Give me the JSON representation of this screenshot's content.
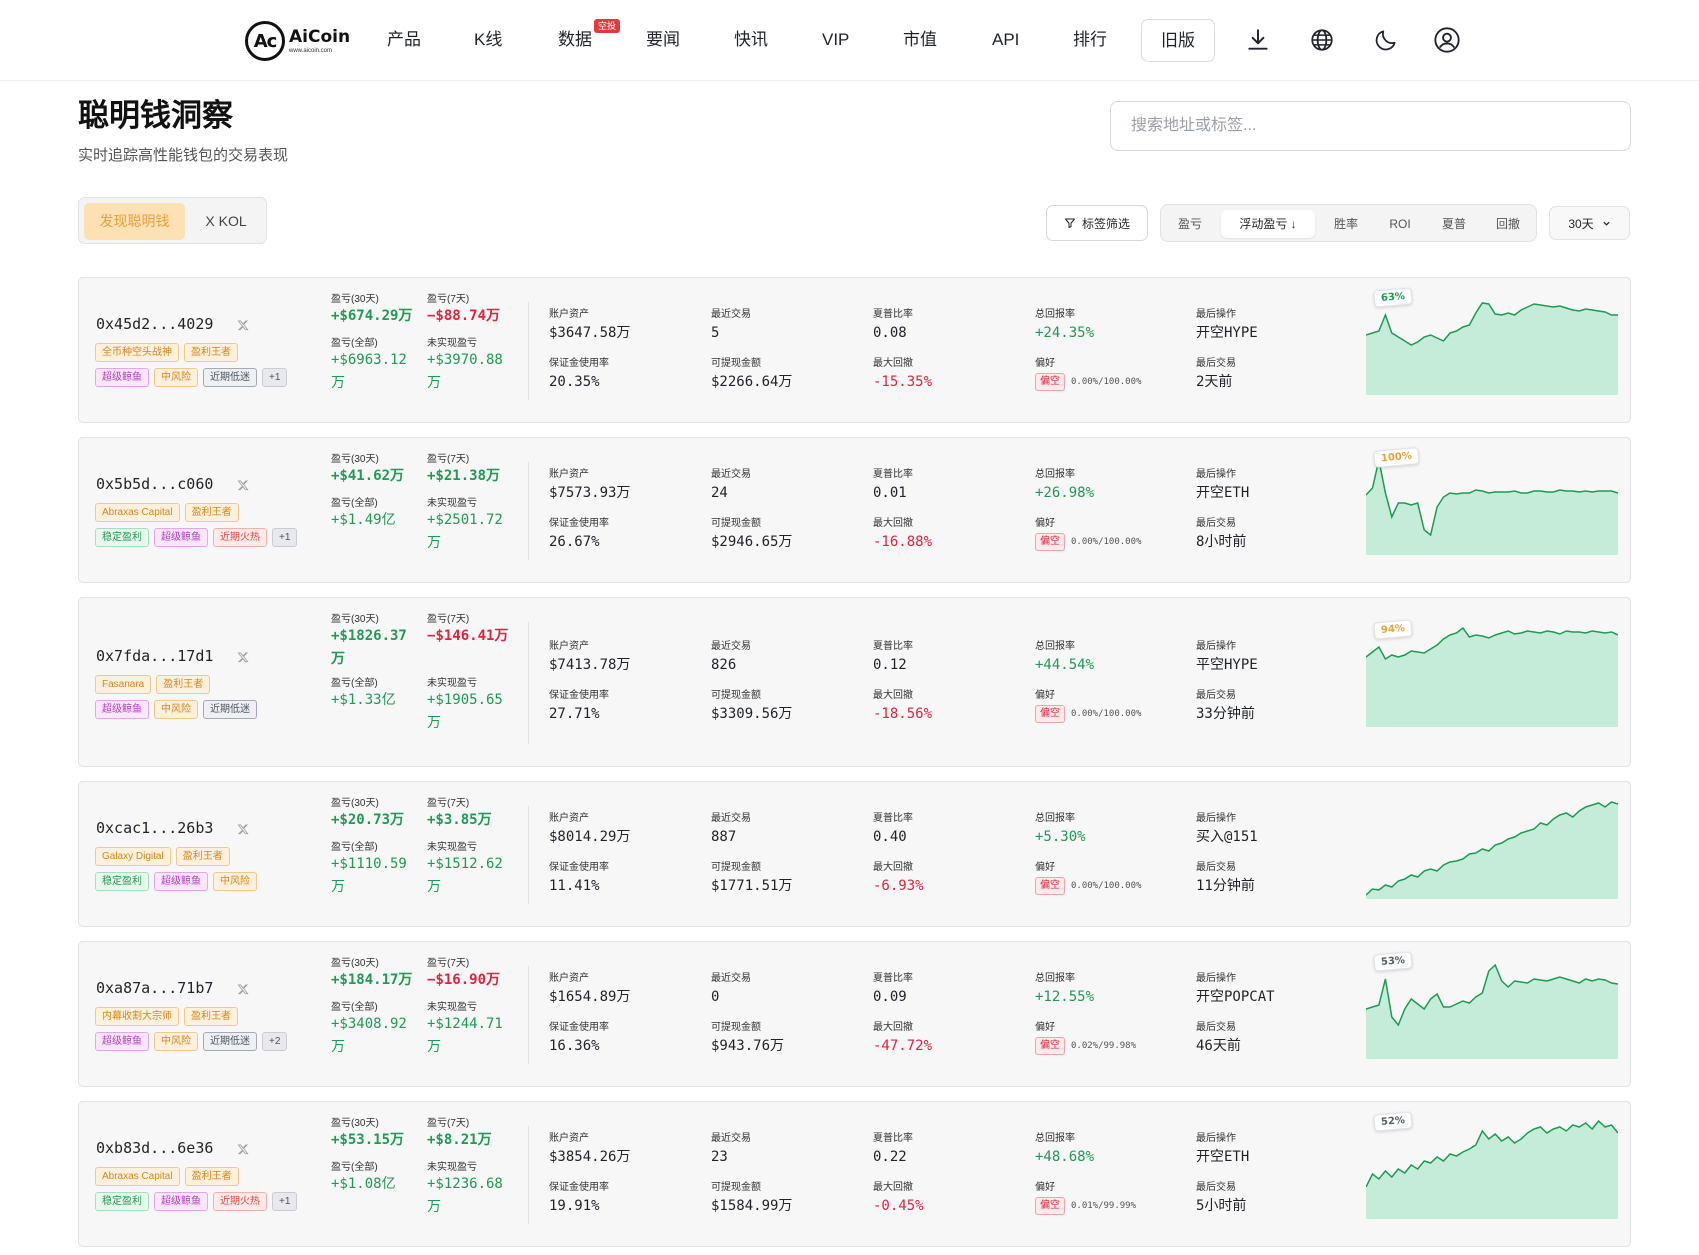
{
  "nav": {
    "logo_name": "AiCoin",
    "logo_sub": "www.aicoin.com",
    "logo_mark": "Ac",
    "items": [
      "产品",
      "K线",
      "数据",
      "要闻",
      "快讯",
      "VIP",
      "市值",
      "API",
      "排行"
    ],
    "data_badge": "空投",
    "old_version": "旧版"
  },
  "header": {
    "title": "聪明钱洞察",
    "subtitle": "实时追踪高性能钱包的交易表现",
    "search_placeholder": "搜索地址或标签..."
  },
  "toggle": {
    "active": "发现聪明钱",
    "other": "X KOL"
  },
  "filters": {
    "tag_filter": "标签筛选",
    "sorts": [
      "盈亏",
      "浮动盈亏 ↓",
      "胜率",
      "ROI",
      "夏普",
      "回撤"
    ],
    "active_sort": 1,
    "period": "30天"
  },
  "labels": {
    "pnl30": "盈亏(30天)",
    "pnl7": "盈亏(7天)",
    "pnl_all": "盈亏(全部)",
    "unrealized": "未实现盈亏",
    "account_assets": "账户资产",
    "margin_usage": "保证金使用率",
    "recent_trades": "最近交易",
    "withdrawable": "可提现金额",
    "sharpe": "夏普比率",
    "max_drawdown": "最大回撤",
    "total_return": "总回报率",
    "preference": "偏好",
    "last_action": "最后操作",
    "last_trade": "最后交易"
  },
  "colors": {
    "green": "#1f9a52",
    "red": "#e0233c",
    "area_green": "#c5ecd8",
    "area_red": "#f6cfd3",
    "badge_orange": "#e8a13d"
  },
  "wallets": [
    {
      "address": "0x45d2...4029",
      "tags": [
        [
          "全币种空头战神",
          "orange"
        ],
        [
          "盈利王者",
          "orange"
        ],
        [
          "超级鲸鱼",
          "purple"
        ],
        [
          "中风险",
          "orange"
        ],
        [
          "近期低迷",
          "gray"
        ],
        [
          "+1",
          "more"
        ]
      ],
      "pnl30": "+$674.29万",
      "pnl7": "−$88.74万",
      "pnl_all": "+$6963.12万",
      "unrealized": "+$3970.88万",
      "account_assets": "$3647.58万",
      "margin_usage": "20.35%",
      "recent_trades": "5",
      "withdrawable": "$2266.64万",
      "sharpe": "0.08",
      "max_drawdown": "-15.35%",
      "total_return": "+24.35%",
      "pref_side": "偏空",
      "pref_ratio": "0.00%/100.00%",
      "last_action": "开空HYPE",
      "last_trade": "2天前",
      "win_rate": "63%",
      "win_color": "#1f9a52",
      "spark": [
        40,
        38,
        36,
        20,
        38,
        42,
        46,
        50,
        47,
        42,
        40,
        43,
        46,
        38,
        36,
        32,
        30,
        18,
        8,
        9,
        19,
        20,
        18,
        20,
        15,
        12,
        9,
        10,
        11,
        12,
        11,
        13,
        15,
        16,
        14,
        15,
        16,
        17,
        20,
        20
      ]
    },
    {
      "address": "0x5b5d...c060",
      "tags": [
        [
          "Abraxas Capital",
          "orange"
        ],
        [
          "盈利王者",
          "orange"
        ],
        [
          "稳定盈利",
          "green"
        ],
        [
          "超级鲸鱼",
          "purple"
        ],
        [
          "近期火热",
          "red"
        ],
        [
          "+1",
          "more"
        ]
      ],
      "pnl30": "+$41.62万",
      "pnl7": "+$21.38万",
      "pnl_all": "+$1.49亿",
      "unrealized": "+$2501.72万",
      "account_assets": "$7573.93万",
      "margin_usage": "26.67%",
      "recent_trades": "24",
      "withdrawable": "$2946.65万",
      "sharpe": "0.01",
      "max_drawdown": "-16.88%",
      "total_return": "+26.98%",
      "pref_side": "偏空",
      "pref_ratio": "0.00%/100.00%",
      "last_action": "开空ETH",
      "last_trade": "8小时前",
      "win_rate": "100%",
      "win_color": "#e8a13d",
      "spark": [
        40,
        33,
        5,
        38,
        62,
        48,
        48,
        50,
        48,
        75,
        80,
        52,
        42,
        38,
        39,
        38,
        38,
        35,
        36,
        38,
        37,
        37,
        37,
        36,
        38,
        38,
        36,
        36,
        37,
        37,
        35,
        36,
        36,
        37,
        36,
        37,
        36,
        36,
        36,
        38
      ]
    },
    {
      "address": "0x7fda...17d1",
      "tags": [
        [
          "Fasanara",
          "orange"
        ],
        [
          "盈利王者",
          "orange"
        ],
        [
          "超级鲸鱼",
          "purple"
        ],
        [
          "中风险",
          "orange"
        ],
        [
          "近期低迷",
          "gray"
        ]
      ],
      "pnl30": "+$1826.37万",
      "pnl7": "−$146.41万",
      "pnl_all": "+$1.33亿",
      "unrealized": "+$1905.65万",
      "account_assets": "$7413.78万",
      "margin_usage": "27.71%",
      "recent_trades": "826",
      "withdrawable": "$3309.56万",
      "sharpe": "0.12",
      "max_drawdown": "-18.56%",
      "total_return": "+44.54%",
      "pref_side": "偏空",
      "pref_ratio": "0.00%/100.00%",
      "last_action": "平空HYPE",
      "last_trade": "33分钟前",
      "win_rate": "94%",
      "win_color": "#e8a13d",
      "spark": [
        30,
        25,
        20,
        32,
        28,
        30,
        28,
        24,
        25,
        26,
        22,
        18,
        12,
        8,
        6,
        1,
        10,
        8,
        9,
        11,
        8,
        6,
        4,
        7,
        6,
        4,
        5,
        6,
        4,
        5,
        7,
        4,
        5,
        5,
        6,
        4,
        5,
        6,
        5,
        8
      ]
    },
    {
      "address": "0xcac1...26b3",
      "tags": [
        [
          "Galaxy Digital",
          "orange"
        ],
        [
          "盈利王者",
          "orange"
        ],
        [
          "稳定盈利",
          "green"
        ],
        [
          "超级鲸鱼",
          "purple"
        ],
        [
          "中风险",
          "orange"
        ]
      ],
      "pnl30": "+$20.73万",
      "pnl7": "+$3.85万",
      "pnl_all": "+$1110.59万",
      "unrealized": "+$1512.62万",
      "account_assets": "$8014.29万",
      "margin_usage": "11.41%",
      "recent_trades": "887",
      "withdrawable": "$1771.51万",
      "sharpe": "0.40",
      "max_drawdown": "-6.93%",
      "total_return": "+5.30%",
      "pref_side": "偏空",
      "pref_ratio": "0.00%/100.00%",
      "last_action": "买入@151",
      "last_trade": "11分钟前",
      "win_rate": "",
      "win_color": "#1f9a52",
      "spark": [
        96,
        90,
        91,
        86,
        88,
        82,
        80,
        76,
        78,
        72,
        70,
        72,
        66,
        63,
        62,
        60,
        55,
        54,
        50,
        52,
        46,
        44,
        40,
        38,
        34,
        32,
        30,
        24,
        26,
        20,
        16,
        14,
        18,
        12,
        8,
        6,
        4,
        8,
        3,
        5
      ]
    },
    {
      "address": "0xa87a...71b7",
      "tags": [
        [
          "内幕收割大宗师",
          "orange"
        ],
        [
          "盈利王者",
          "orange"
        ],
        [
          "超级鲸鱼",
          "purple"
        ],
        [
          "中风险",
          "orange"
        ],
        [
          "近期低迷",
          "gray"
        ],
        [
          "+2",
          "more"
        ]
      ],
      "pnl30": "+$184.17万",
      "pnl7": "−$16.90万",
      "pnl_all": "+$3408.92万",
      "unrealized": "+$1244.71万",
      "account_assets": "$1654.89万",
      "margin_usage": "16.36%",
      "recent_trades": "0",
      "withdrawable": "$943.76万",
      "sharpe": "0.09",
      "max_drawdown": "-47.72%",
      "total_return": "+12.55%",
      "pref_side": "偏空",
      "pref_ratio": "0.02%/99.98%",
      "last_action": "开空POPCAT",
      "last_trade": "46天前",
      "win_rate": "53%",
      "win_color": "#555f6d",
      "spark": [
        50,
        48,
        46,
        20,
        58,
        66,
        50,
        40,
        45,
        50,
        40,
        35,
        48,
        48,
        45,
        42,
        44,
        38,
        34,
        12,
        6,
        22,
        28,
        22,
        23,
        24,
        20,
        21,
        22,
        20,
        18,
        20,
        22,
        24,
        20,
        22,
        20,
        21,
        24,
        25
      ]
    },
    {
      "address": "0xb83d...6e36",
      "tags": [
        [
          "Abraxas Capital",
          "orange"
        ],
        [
          "盈利王者",
          "orange"
        ],
        [
          "稳定盈利",
          "green"
        ],
        [
          "超级鲸鱼",
          "purple"
        ],
        [
          "近期火热",
          "red"
        ],
        [
          "+1",
          "more"
        ]
      ],
      "pnl30": "+$53.15万",
      "pnl7": "+$8.21万",
      "pnl_all": "+$1.08亿",
      "unrealized": "+$1236.68万",
      "account_assets": "$3854.26万",
      "margin_usage": "19.91%",
      "recent_trades": "23",
      "withdrawable": "$1584.99万",
      "sharpe": "0.22",
      "max_drawdown": "-0.45%",
      "total_return": "+48.68%",
      "pref_side": "偏空",
      "pref_ratio": "0.01%/99.99%",
      "last_action": "开空ETH",
      "last_trade": "5小时前",
      "win_rate": "52%",
      "win_color": "#555f6d",
      "spark": [
        68,
        55,
        60,
        52,
        58,
        50,
        54,
        46,
        50,
        42,
        44,
        38,
        42,
        35,
        37,
        33,
        30,
        26,
        12,
        20,
        15,
        22,
        18,
        24,
        20,
        14,
        10,
        8,
        14,
        10,
        8,
        12,
        6,
        8,
        4,
        10,
        2,
        8,
        6,
        14
      ]
    }
  ]
}
